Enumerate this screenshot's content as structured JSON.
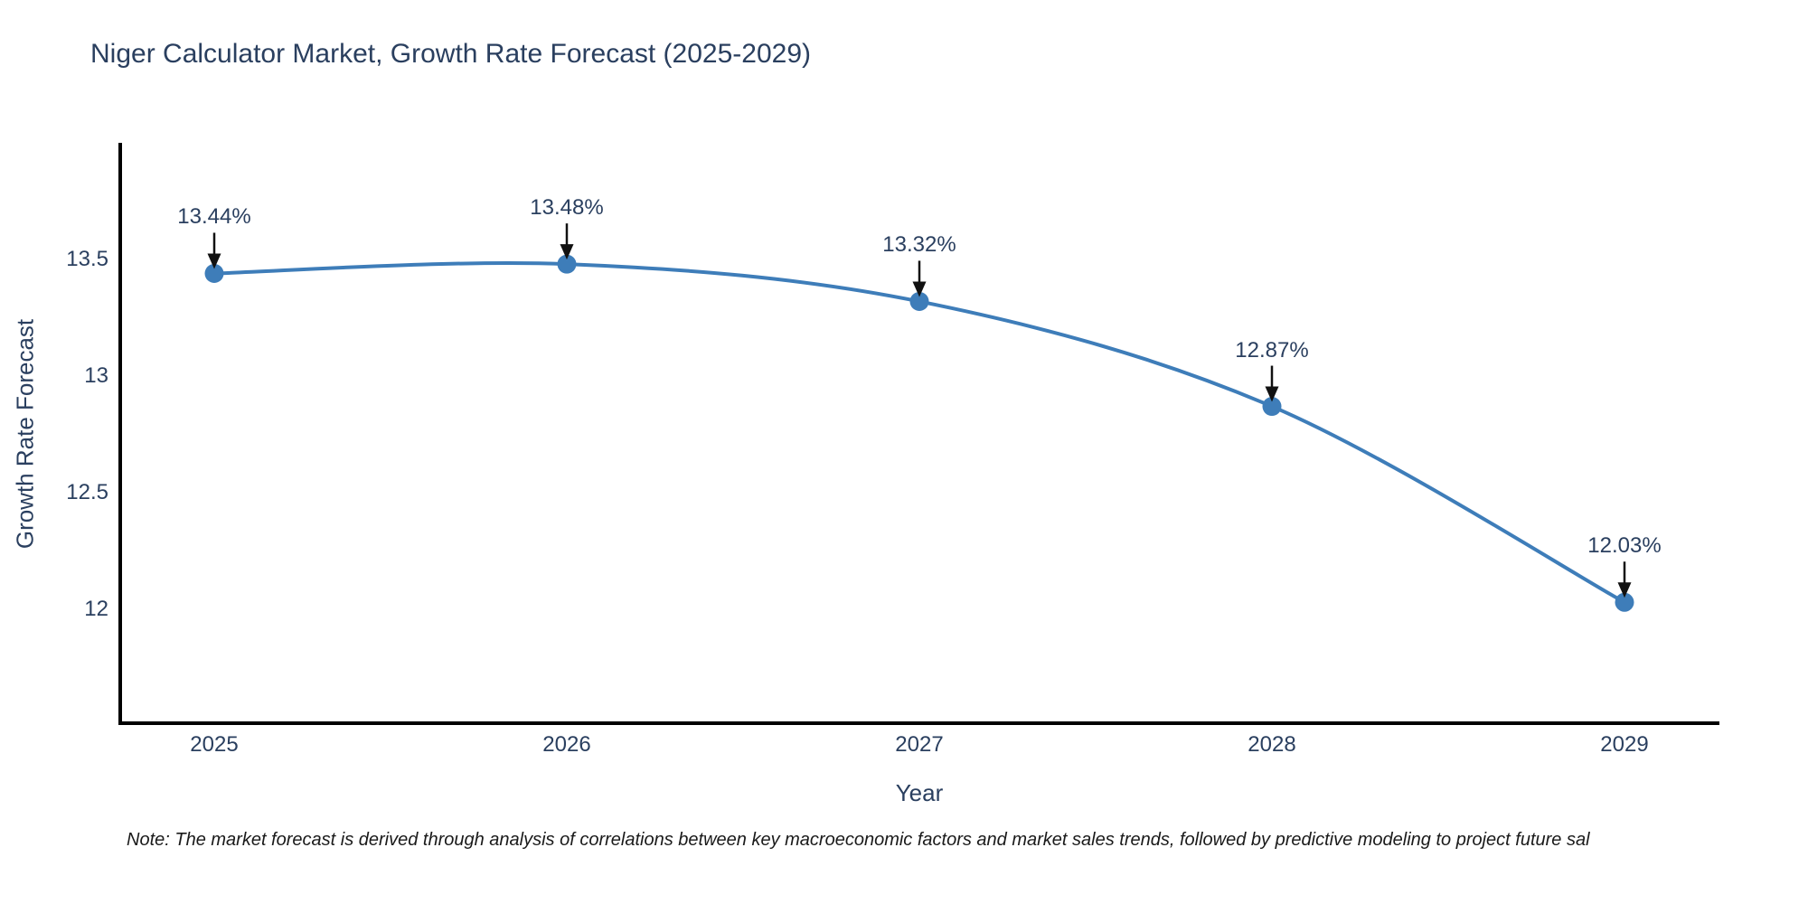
{
  "chart_data": {
    "type": "line",
    "title": "Niger Calculator Market, Growth Rate Forecast (2025-2029)",
    "xlabel": "Year",
    "ylabel": "Growth Rate Forecast",
    "x": [
      2025,
      2026,
      2027,
      2028,
      2029
    ],
    "series": [
      {
        "name": "Growth Rate Forecast",
        "values": [
          13.44,
          13.48,
          13.32,
          12.87,
          12.03
        ]
      }
    ],
    "point_labels": [
      "13.44%",
      "13.48%",
      "13.32%",
      "12.87%",
      "12.03%"
    ],
    "yticks": [
      12,
      12.5,
      13,
      13.5
    ],
    "ylim": [
      11.5,
      14.0
    ],
    "grid": false,
    "legend_position": "none",
    "line_shape": "spline",
    "annotation_style": "label-with-down-arrow",
    "colors": {
      "line": "#3e7db9",
      "marker": "#3e7db9",
      "axis": "#000000",
      "arrow": "#111111",
      "text": "#2a3f5f",
      "note": "#1a1a1a"
    }
  },
  "footnote": "Note: The market forecast is derived through analysis of correlations between key macroeconomic factors and market sales trends, followed by predictive modeling to project future sal"
}
